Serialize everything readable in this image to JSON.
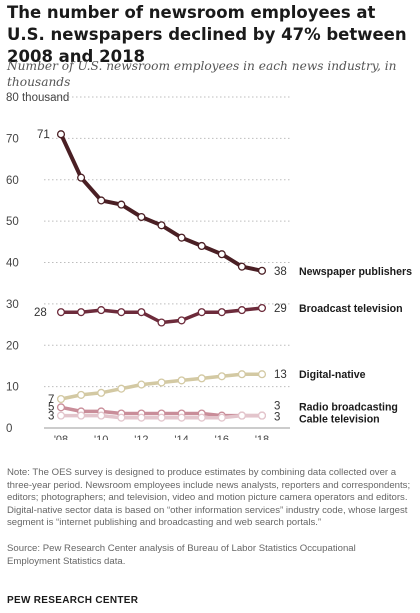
{
  "header": {
    "title": "The number of newsroom employees at U.S. newspapers declined by 47% between 2008 and 2018",
    "subtitle": "Number of U.S. newsroom employees in each news industry, in thousands"
  },
  "chart_data": {
    "type": "line",
    "title": "The number of newsroom employees at U.S. newspapers declined by 47% between 2008 and 2018",
    "subtitle": "Number of U.S. newsroom employees in each news industry, in thousands",
    "ylim": [
      0,
      80
    ],
    "yticks": [
      0,
      10,
      20,
      30,
      40,
      50,
      60,
      70,
      80
    ],
    "ytick_labels": [
      "0",
      "10",
      "20",
      "30",
      "40",
      "50",
      "60",
      "70",
      "80 thousand"
    ],
    "x": [
      2008,
      2009,
      2010,
      2011,
      2012,
      2013,
      2014,
      2015,
      2016,
      2017,
      2018
    ],
    "xticks": [
      2008,
      2010,
      2012,
      2014,
      2016,
      2018
    ],
    "xtick_labels": [
      "'08",
      "'10",
      "'12",
      "'14",
      "'16",
      "'18"
    ],
    "grid": true,
    "series": [
      {
        "name": "Newspaper publishers",
        "values": [
          71,
          60.5,
          55,
          54,
          51,
          49,
          46,
          44,
          42,
          39,
          38
        ],
        "start_label": "71",
        "end_label": "38",
        "color": "#4a1f24",
        "highlight": true
      },
      {
        "name": "Broadcast television",
        "values": [
          28,
          28,
          28.5,
          28,
          28,
          25.5,
          26,
          28,
          28,
          28.5,
          29
        ],
        "start_label": "28",
        "end_label": "29",
        "color": "#6d2b3b",
        "highlight": false
      },
      {
        "name": "Digital-native",
        "values": [
          7,
          8,
          8.5,
          9.5,
          10.5,
          11,
          11.5,
          12,
          12.5,
          13,
          13
        ],
        "start_label": "7",
        "end_label": "13",
        "color": "#d3c9a3",
        "highlight": false
      },
      {
        "name": "Radio broadcasting",
        "values": [
          5,
          4,
          4,
          3.5,
          3.5,
          3.5,
          3.5,
          3.5,
          3,
          3,
          3
        ],
        "start_label": "5",
        "end_label": "3",
        "color": "#c98d99",
        "highlight": false
      },
      {
        "name": "Cable television",
        "values": [
          3,
          3,
          3,
          2.5,
          2.5,
          2.5,
          2.5,
          2.5,
          2.5,
          3,
          3
        ],
        "start_label": "3",
        "end_label": "3",
        "color": "#e3c5cc",
        "highlight": false
      }
    ]
  },
  "footer": {
    "note": "Note: The OES survey is designed to produce estimates by combining data collected over a three-year period. Newsroom employees include news analysts, reporters and correspondents; editors; photographers; and television, video and motion picture camera operators and editors. Digital-native sector data is based on “other information services” industry code, whose largest segment is “internet publishing and broadcasting and web search portals.”",
    "source": "Source: Pew Research Center analysis of Bureau of Labor Statistics Occupational Employment Statistics data.",
    "brand": "PEW RESEARCH CENTER"
  }
}
